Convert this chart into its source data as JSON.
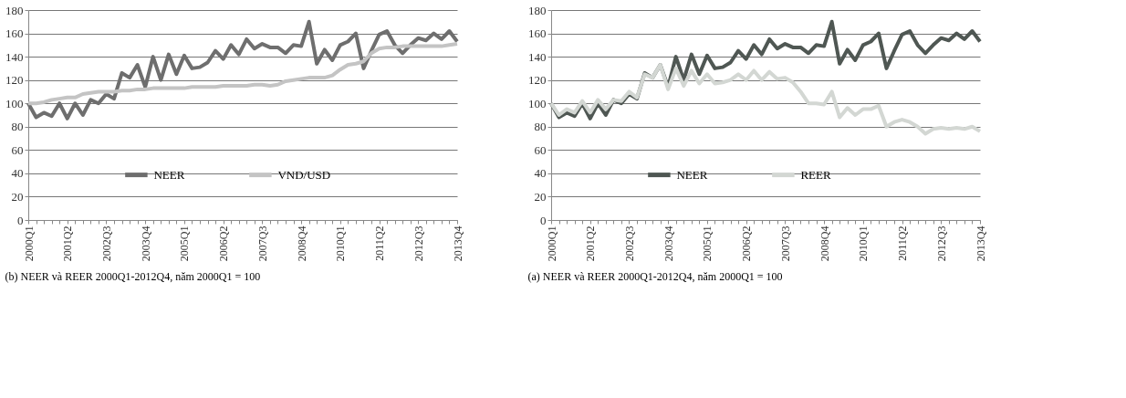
{
  "chart_data": [
    {
      "type": "line",
      "title": "(b) NEER và REER  2000Q1-2012Q4, năm 2000Q1 = 100",
      "categories": [
        "2000Q1",
        null,
        null,
        null,
        null,
        "2001Q2",
        null,
        null,
        null,
        null,
        "2002Q3",
        null,
        null,
        null,
        null,
        "2003Q4",
        null,
        null,
        null,
        null,
        "2005Q1",
        null,
        null,
        null,
        null,
        "2006Q2",
        null,
        null,
        null,
        null,
        "2007Q3",
        null,
        null,
        null,
        null,
        "2008Q4",
        null,
        null,
        null,
        null,
        "2010Q1",
        null,
        null,
        null,
        null,
        "2011Q2",
        null,
        null,
        null,
        null,
        "2012Q3",
        null,
        null,
        null,
        null,
        "2013Q4"
      ],
      "series": [
        {
          "name": "NEER",
          "color": "#6e6e6e",
          "values": [
            100,
            88,
            92,
            89,
            100,
            87,
            100,
            90,
            103,
            100,
            108,
            104,
            126,
            122,
            133,
            114,
            140,
            120,
            142,
            125,
            141,
            130,
            131,
            135,
            145,
            138,
            150,
            142,
            155,
            147,
            151,
            148,
            148,
            143,
            150,
            149,
            170,
            134,
            146,
            137,
            150,
            153,
            160,
            130,
            145,
            159,
            162,
            150,
            143,
            150,
            156,
            154,
            160,
            155,
            162,
            153
          ]
        },
        {
          "name": "VND/USD",
          "color": "#c4c4c4",
          "values": [
            100,
            100,
            101,
            103,
            104,
            105,
            105,
            108,
            109,
            110,
            110,
            110,
            111,
            111,
            112,
            112,
            113,
            113,
            113,
            113,
            113,
            114,
            114,
            114,
            114,
            115,
            115,
            115,
            115,
            116,
            116,
            115,
            116,
            119,
            120,
            121,
            122,
            122,
            122,
            124,
            129,
            133,
            134,
            136,
            143,
            147,
            148,
            148,
            149,
            149,
            149,
            149,
            149,
            149,
            150,
            151
          ]
        }
      ],
      "ylim": [
        0,
        180
      ],
      "yticks": [
        0,
        20,
        40,
        60,
        80,
        100,
        120,
        140,
        160,
        180
      ],
      "grid": "y",
      "legend": "bottom",
      "line_style": "solid"
    },
    {
      "type": "line",
      "title": "(a) NEER và REER  2000Q1-2012Q4, năm 2000Q1 = 100",
      "categories": [
        "2000Q1",
        null,
        null,
        null,
        null,
        "2001Q2",
        null,
        null,
        null,
        null,
        "2002Q3",
        null,
        null,
        null,
        null,
        "2003Q4",
        null,
        null,
        null,
        null,
        "2005Q1",
        null,
        null,
        null,
        null,
        "2006Q2",
        null,
        null,
        null,
        null,
        "2007Q3",
        null,
        null,
        null,
        null,
        "2008Q4",
        null,
        null,
        null,
        null,
        "2010Q1",
        null,
        null,
        null,
        null,
        "2011Q2",
        null,
        null,
        null,
        null,
        "2012Q3",
        null,
        null,
        null,
        null,
        "2013Q4"
      ],
      "series": [
        {
          "name": "NEER",
          "color": "#4f5753",
          "values": [
            100,
            88,
            92,
            89,
            100,
            87,
            100,
            90,
            103,
            100,
            108,
            104,
            126,
            122,
            133,
            114,
            140,
            120,
            142,
            125,
            141,
            130,
            131,
            135,
            145,
            138,
            150,
            142,
            155,
            147,
            151,
            148,
            148,
            143,
            150,
            149,
            170,
            134,
            146,
            137,
            150,
            153,
            160,
            130,
            145,
            159,
            162,
            150,
            143,
            150,
            156,
            154,
            160,
            155,
            162,
            153
          ]
        },
        {
          "name": "REER",
          "color": "#d3d7d3",
          "values": [
            100,
            90,
            95,
            92,
            102,
            92,
            103,
            95,
            103,
            102,
            110,
            105,
            125,
            122,
            133,
            112,
            130,
            115,
            128,
            117,
            125,
            117,
            118,
            120,
            125,
            120,
            128,
            120,
            127,
            121,
            122,
            118,
            110,
            100,
            100,
            99,
            110,
            88,
            96,
            90,
            95,
            95,
            98,
            80,
            84,
            86,
            84,
            80,
            74,
            78,
            79,
            78,
            79,
            78,
            80,
            76
          ]
        }
      ],
      "ylim": [
        0,
        180
      ],
      "yticks": [
        0,
        20,
        40,
        60,
        80,
        100,
        120,
        140,
        160,
        180
      ],
      "grid": "y",
      "legend": "bottom",
      "line_style": "solid"
    }
  ]
}
